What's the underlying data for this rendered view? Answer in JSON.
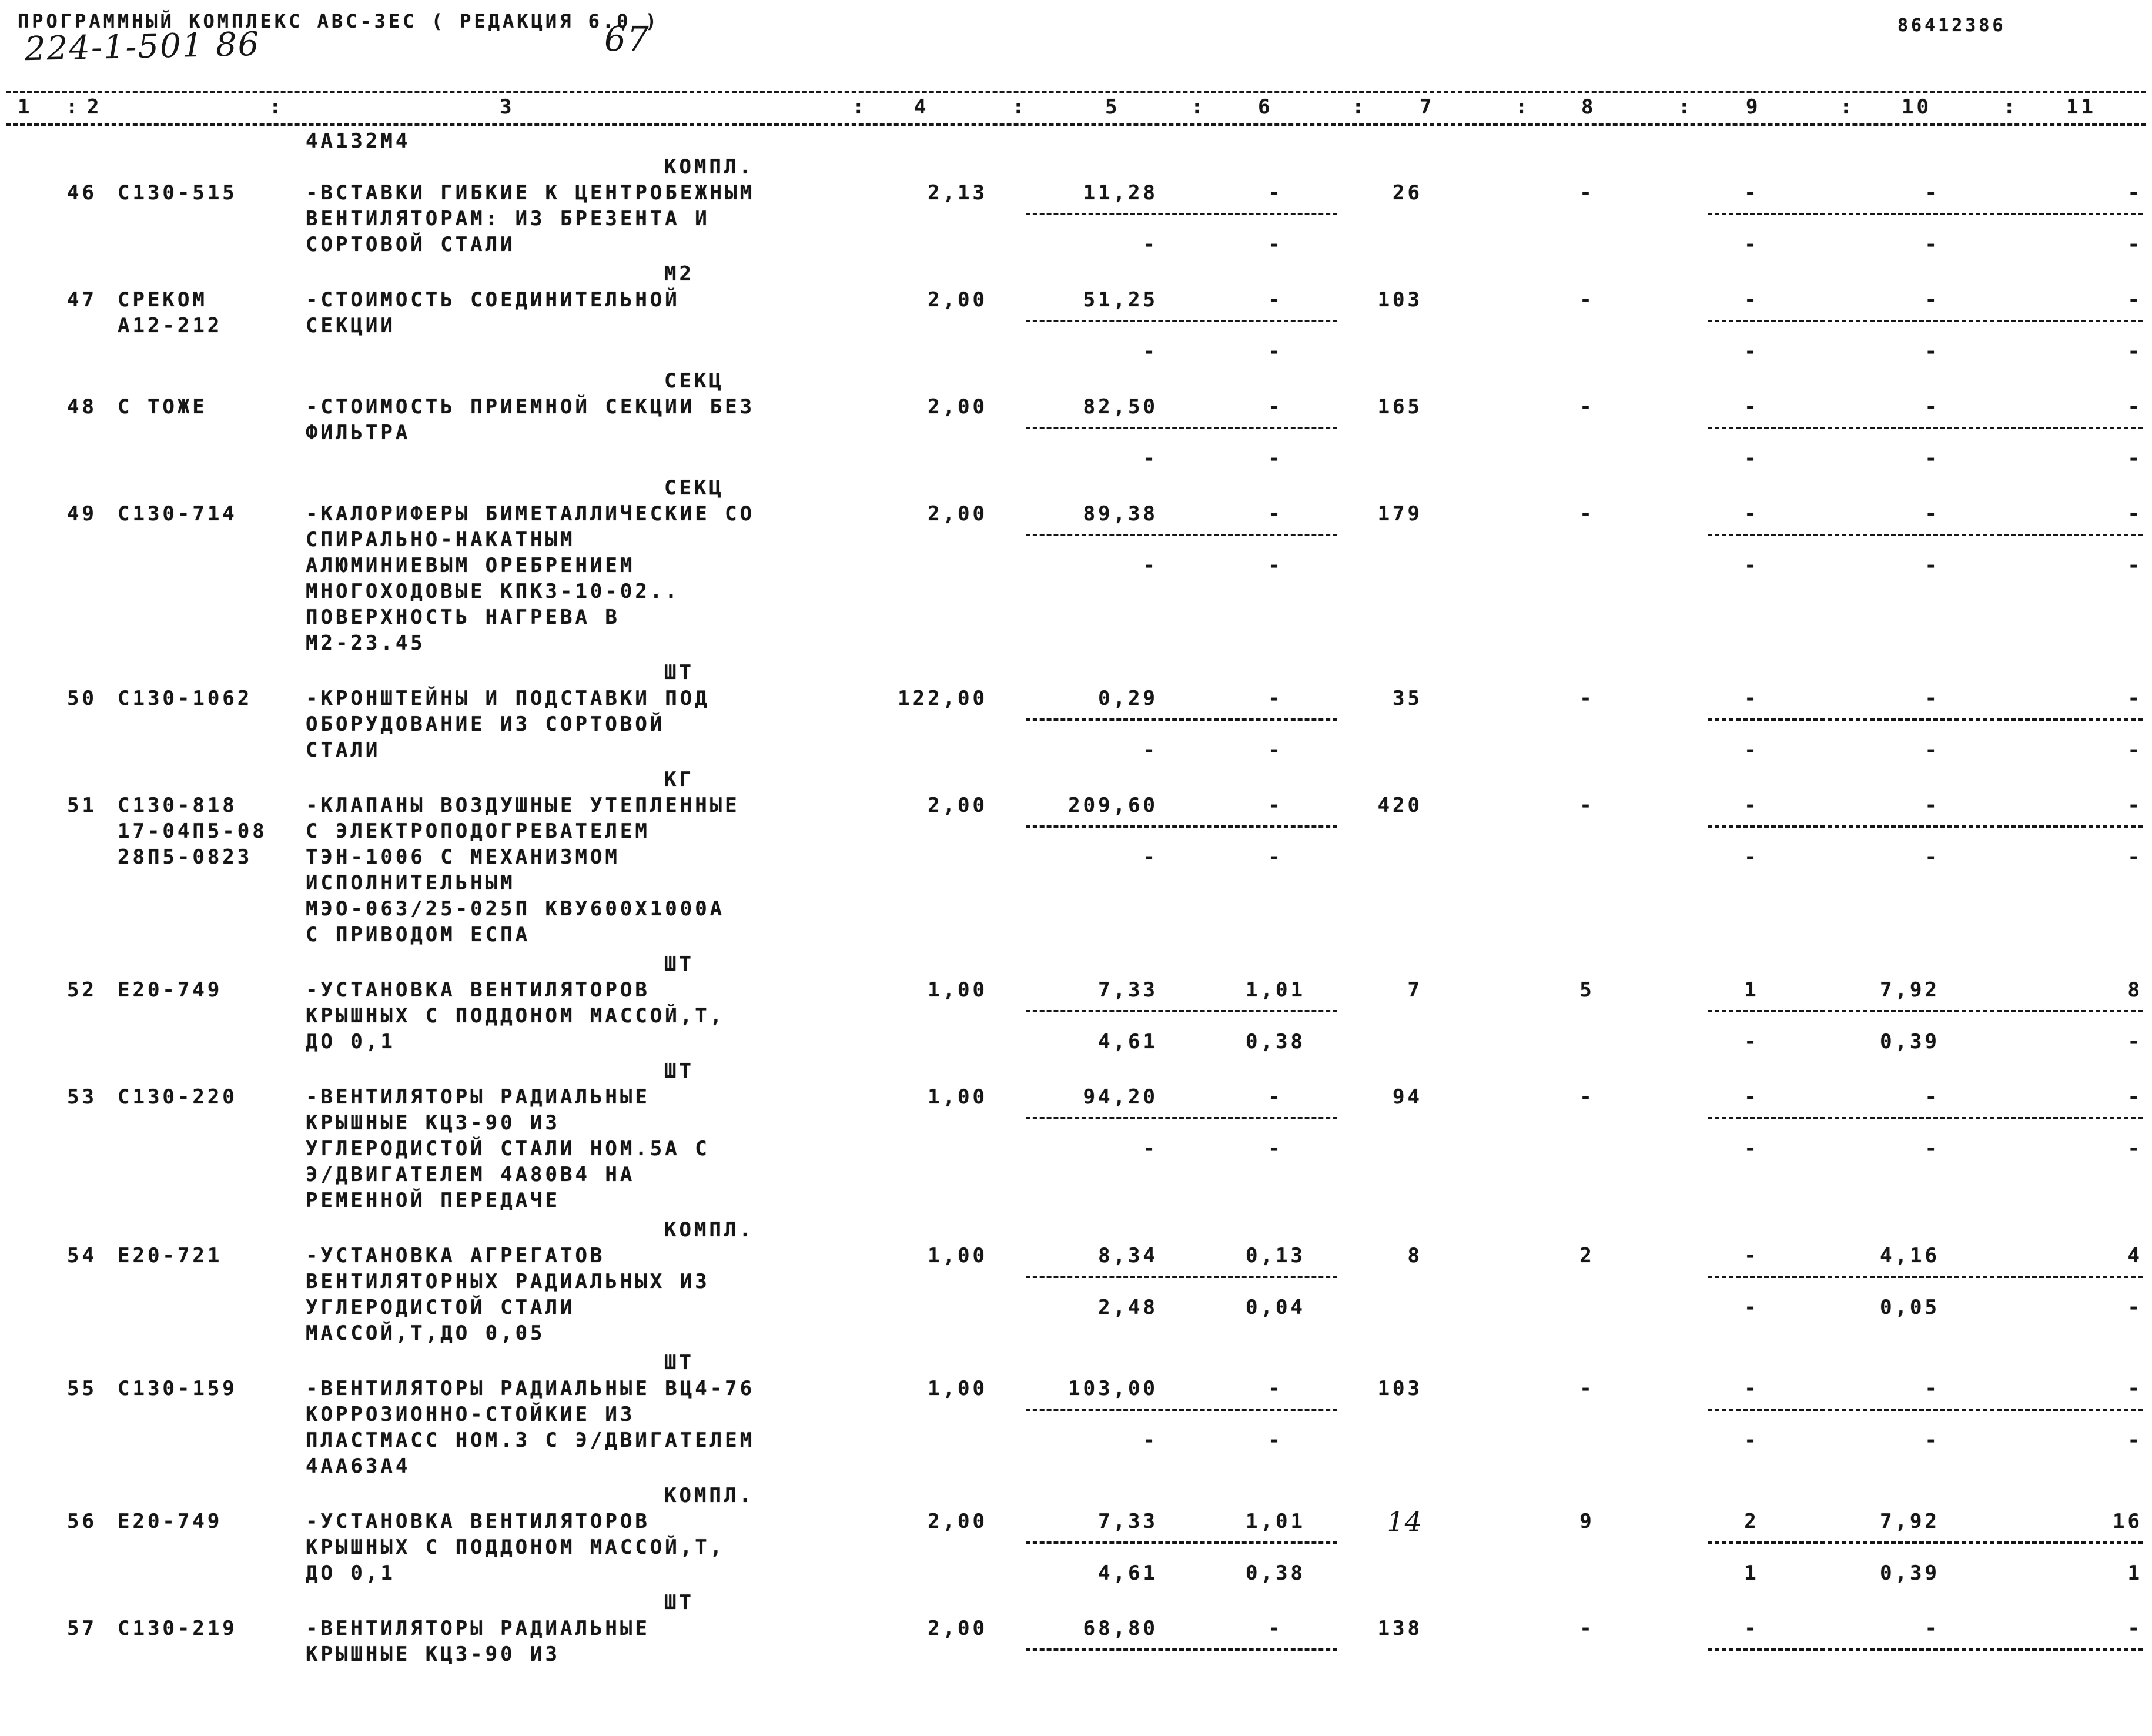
{
  "header": {
    "program_title": "ПРОГРАММНЫЙ КОМПЛЕКС АВС-ЗЕС    ( РЕДАКЦИЯ 6.0 )",
    "doc_code": "86412386",
    "handwritten_object_code": "224-1-501 86",
    "page_number": "67"
  },
  "table": {
    "column_numbers": [
      "1",
      "2",
      "3",
      "4",
      "5",
      "6",
      "7",
      "8",
      "9",
      "10",
      "11"
    ],
    "column_separator": ":",
    "continuation_text": "4А132М4"
  },
  "rows": [
    {
      "num": "46",
      "code_lines": [
        "С130-515"
      ],
      "unit": "КОМПЛ.",
      "desc_lines": [
        "-ВСТАВКИ ГИБКИЕ К ЦЕНТРОБЕЖНЫМ",
        "ВЕНТИЛЯТОРАМ: ИЗ БРЕЗЕНТА И",
        "СОРТОВОЙ СТАЛИ"
      ],
      "vals": {
        "c4": "2,13",
        "c5": "11,28",
        "c6": "-",
        "c7": "26",
        "c8": "-",
        "c9": "-",
        "c10": "-",
        "c11": "-"
      },
      "vals2": {
        "c5": "-",
        "c6": "-",
        "c9": "-",
        "c10": "-",
        "c11": "-"
      },
      "c7_handwritten": false
    },
    {
      "num": "47",
      "code_lines": [
        "СРЕКОМ",
        "А12-212"
      ],
      "unit": "М2",
      "desc_lines": [
        "-СТОИМОСТЬ СОЕДИНИТЕЛЬНОЙ",
        "СЕКЦИИ"
      ],
      "vals": {
        "c4": "2,00",
        "c5": "51,25",
        "c6": "-",
        "c7": "103",
        "c8": "-",
        "c9": "-",
        "c10": "-",
        "c11": "-"
      },
      "vals2": {
        "c5": "-",
        "c6": "-",
        "c9": "-",
        "c10": "-",
        "c11": "-"
      },
      "c7_handwritten": false
    },
    {
      "num": "48",
      "code_lines": [
        "С ТОЖЕ"
      ],
      "unit": "СЕКЦ",
      "desc_lines": [
        "-СТОИМОСТЬ ПРИЕМНОЙ СЕКЦИИ БЕЗ",
        "ФИЛЬТРА"
      ],
      "vals": {
        "c4": "2,00",
        "c5": "82,50",
        "c6": "-",
        "c7": "165",
        "c8": "-",
        "c9": "-",
        "c10": "-",
        "c11": "-"
      },
      "vals2": {
        "c5": "-",
        "c6": "-",
        "c9": "-",
        "c10": "-",
        "c11": "-"
      },
      "c7_handwritten": false
    },
    {
      "num": "49",
      "code_lines": [
        "С130-714"
      ],
      "unit": "СЕКЦ",
      "desc_lines": [
        "-КАЛОРИФЕРЫ БИМЕТАЛЛИЧЕСКИЕ СО",
        "СПИРАЛЬНО-НАКАТНЫМ",
        "АЛЮМИНИЕВЫМ ОРЕБРЕНИЕМ",
        "МНОГОХОДОВЫЕ КПКЗ-10-02..",
        "ПОВЕРХНОСТЬ НАГРЕВА В",
        "М2-23.45"
      ],
      "vals": {
        "c4": "2,00",
        "c5": "89,38",
        "c6": "-",
        "c7": "179",
        "c8": "-",
        "c9": "-",
        "c10": "-",
        "c11": "-"
      },
      "vals2": {
        "c5": "-",
        "c6": "-",
        "c9": "-",
        "c10": "-",
        "c11": "-"
      },
      "c7_handwritten": false
    },
    {
      "num": "50",
      "code_lines": [
        "С130-1062"
      ],
      "unit": "ШТ",
      "desc_lines": [
        "-КРОНШТЕЙНЫ И ПОДСТАВКИ ПОД",
        "ОБОРУДОВАНИЕ ИЗ СОРТОВОЙ",
        "СТАЛИ"
      ],
      "vals": {
        "c4": "122,00",
        "c5": "0,29",
        "c6": "-",
        "c7": "35",
        "c8": "-",
        "c9": "-",
        "c10": "-",
        "c11": "-"
      },
      "vals2": {
        "c5": "-",
        "c6": "-",
        "c9": "-",
        "c10": "-",
        "c11": "-"
      },
      "c7_handwritten": false
    },
    {
      "num": "51",
      "code_lines": [
        "С130-818",
        "17-04П5-08",
        "28П5-0823"
      ],
      "unit": "КГ",
      "desc_lines": [
        "-КЛАПАНЫ ВОЗДУШНЫЕ УТЕПЛЕННЫЕ",
        "С ЭЛЕКТРОПОДОГРЕВАТЕЛЕМ",
        "ТЭН-1006 С МЕХАНИЗМОМ",
        "ИСПОЛНИТЕЛЬНЫМ",
        "МЭО-063/25-025П КВУ600Х1000А",
        "С ПРИВОДОМ ЕСПА"
      ],
      "vals": {
        "c4": "2,00",
        "c5": "209,60",
        "c6": "-",
        "c7": "420",
        "c8": "-",
        "c9": "-",
        "c10": "-",
        "c11": "-"
      },
      "vals2": {
        "c5": "-",
        "c6": "-",
        "c9": "-",
        "c10": "-",
        "c11": "-"
      },
      "c7_handwritten": false
    },
    {
      "num": "52",
      "code_lines": [
        "Е20-749"
      ],
      "unit": "ШТ",
      "desc_lines": [
        "-УСТАНОВКА ВЕНТИЛЯТОРОВ",
        "КРЫШНЫХ С ПОДДОНОМ МАССОЙ,Т,",
        "ДО 0,1"
      ],
      "vals": {
        "c4": "1,00",
        "c5": "7,33",
        "c6": "1,01",
        "c7": "7",
        "c8": "5",
        "c9": "1",
        "c10": "7,92",
        "c11": "8"
      },
      "vals2": {
        "c5": "4,61",
        "c6": "0,38",
        "c9": "-",
        "c10": "0,39",
        "c11": "-"
      },
      "c7_handwritten": false
    },
    {
      "num": "53",
      "code_lines": [
        "С130-220"
      ],
      "unit": "ШТ",
      "desc_lines": [
        "-ВЕНТИЛЯТОРЫ РАДИАЛЬНЫЕ",
        "КРЫШНЫЕ КЦЗ-90 ИЗ",
        "УГЛЕРОДИСТОЙ СТАЛИ НОМ.5А С",
        "Э/ДВИГАТЕЛЕМ 4А80В4 НА",
        "РЕМЕННОЙ ПЕРЕДАЧЕ"
      ],
      "vals": {
        "c4": "1,00",
        "c5": "94,20",
        "c6": "-",
        "c7": "94",
        "c8": "-",
        "c9": "-",
        "c10": "-",
        "c11": "-"
      },
      "vals2": {
        "c5": "-",
        "c6": "-",
        "c9": "-",
        "c10": "-",
        "c11": "-"
      },
      "c7_handwritten": false
    },
    {
      "num": "54",
      "code_lines": [
        "Е20-721"
      ],
      "unit": "КОМПЛ.",
      "desc_lines": [
        "-УСТАНОВКА АГРЕГАТОВ",
        "ВЕНТИЛЯТОРНЫХ РАДИАЛЬНЫХ ИЗ",
        "УГЛЕРОДИСТОЙ СТАЛИ",
        "МАССОЙ,Т,ДО 0,05"
      ],
      "vals": {
        "c4": "1,00",
        "c5": "8,34",
        "c6": "0,13",
        "c7": "8",
        "c8": "2",
        "c9": "-",
        "c10": "4,16",
        "c11": "4"
      },
      "vals2": {
        "c5": "2,48",
        "c6": "0,04",
        "c9": "-",
        "c10": "0,05",
        "c11": "-"
      },
      "c7_handwritten": false
    },
    {
      "num": "55",
      "code_lines": [
        "С130-159"
      ],
      "unit": "ШТ",
      "desc_lines": [
        "-ВЕНТИЛЯТОРЫ РАДИАЛЬНЫЕ ВЦ4-76",
        "КОРРОЗИОННО-СТОЙКИЕ ИЗ",
        "ПЛАСТМАСС НОМ.3 С Э/ДВИГАТЕЛЕМ",
        "4АА63А4"
      ],
      "vals": {
        "c4": "1,00",
        "c5": "103,00",
        "c6": "-",
        "c7": "103",
        "c8": "-",
        "c9": "-",
        "c10": "-",
        "c11": "-"
      },
      "vals2": {
        "c5": "-",
        "c6": "-",
        "c9": "-",
        "c10": "-",
        "c11": "-"
      },
      "c7_handwritten": false
    },
    {
      "num": "56",
      "code_lines": [
        "Е20-749"
      ],
      "unit": "КОМПЛ.",
      "desc_lines": [
        "-УСТАНОВКА ВЕНТИЛЯТОРОВ",
        "КРЫШНЫХ С ПОДДОНОМ МАССОЙ,Т,",
        "ДО 0,1"
      ],
      "vals": {
        "c4": "2,00",
        "c5": "7,33",
        "c6": "1,01",
        "c7": "14",
        "c8": "9",
        "c9": "2",
        "c10": "7,92",
        "c11": "16"
      },
      "vals2": {
        "c5": "4,61",
        "c6": "0,38",
        "c9": "1",
        "c10": "0,39",
        "c11": "1"
      },
      "c7_handwritten": true
    },
    {
      "num": "57",
      "code_lines": [
        "С130-219"
      ],
      "unit": "ШТ",
      "desc_lines": [
        "-ВЕНТИЛЯТОРЫ РАДИАЛЬНЫЕ",
        "КРЫШНЫЕ КЦЗ-90 ИЗ"
      ],
      "vals": {
        "c4": "2,00",
        "c5": "68,80",
        "c6": "-",
        "c7": "138",
        "c8": "-",
        "c9": "-",
        "c10": "-",
        "c11": "-"
      },
      "vals2": {
        "c5": "",
        "c6": "",
        "c9": "",
        "c10": "",
        "c11": ""
      },
      "c7_handwritten": false
    }
  ]
}
